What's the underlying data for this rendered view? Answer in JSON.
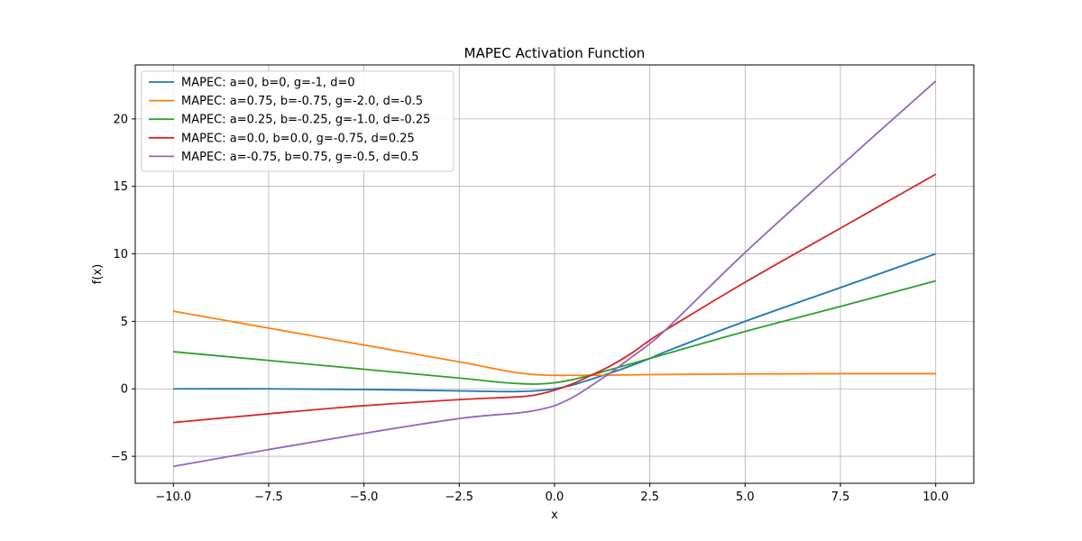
{
  "chart_data": {
    "type": "line",
    "title": "MAPEC Activation Function",
    "xlabel": "x",
    "ylabel": "f(x)",
    "xlim": [
      -11,
      11
    ],
    "ylim": [
      -7,
      24
    ],
    "grid": true,
    "legend_position": "top-left",
    "x_ticks": [
      -10,
      -7.5,
      -5,
      -2.5,
      0,
      2.5,
      5,
      7.5,
      10
    ],
    "x_tick_labels": [
      "−10.0",
      "−7.5",
      "−5.0",
      "−2.5",
      "0.0",
      "2.5",
      "5.0",
      "7.5",
      "10.0"
    ],
    "y_ticks": [
      -5,
      0,
      5,
      10,
      15,
      20
    ],
    "y_tick_labels": [
      "−5",
      "0",
      "5",
      "10",
      "15",
      "20"
    ],
    "series": [
      {
        "name": "MAPEC: a=0, b=0, g=-1, d=0",
        "color": "#1f77b4",
        "points": [
          [
            -10,
            0
          ],
          [
            -7.5,
            0
          ],
          [
            -5,
            -0.05
          ],
          [
            -2.5,
            -0.15
          ],
          [
            -1.5,
            -0.2
          ],
          [
            -1,
            -0.2
          ],
          [
            -0.5,
            -0.15
          ],
          [
            0,
            0
          ],
          [
            0.5,
            0.3
          ],
          [
            1,
            0.75
          ],
          [
            1.5,
            1.2
          ],
          [
            2,
            1.7
          ],
          [
            2.5,
            2.25
          ],
          [
            3,
            2.85
          ],
          [
            5,
            5
          ],
          [
            7.5,
            7.5
          ],
          [
            10,
            10
          ]
        ]
      },
      {
        "name": "MAPEC: a=0.75, b=-0.75, g=-2.0, d=-0.5",
        "color": "#ff7f0e",
        "points": [
          [
            -10,
            5.75
          ],
          [
            -7.5,
            4.5
          ],
          [
            -5,
            3.25
          ],
          [
            -2.5,
            2
          ],
          [
            -1.5,
            1.45
          ],
          [
            -1,
            1.2
          ],
          [
            -0.5,
            1.05
          ],
          [
            0,
            1
          ],
          [
            0.5,
            1
          ],
          [
            1,
            1
          ],
          [
            2.5,
            1.05
          ],
          [
            5,
            1.1
          ],
          [
            7.5,
            1.12
          ],
          [
            10,
            1.12
          ]
        ]
      },
      {
        "name": "MAPEC: a=0.25, b=-0.25, g=-1.0, d=-0.25",
        "color": "#2ca02c",
        "points": [
          [
            -10,
            2.75
          ],
          [
            -7.5,
            2.1
          ],
          [
            -5,
            1.45
          ],
          [
            -2.5,
            0.8
          ],
          [
            -1.5,
            0.5
          ],
          [
            -1,
            0.4
          ],
          [
            -0.5,
            0.35
          ],
          [
            0,
            0.45
          ],
          [
            0.5,
            0.7
          ],
          [
            1,
            1.05
          ],
          [
            1.5,
            1.45
          ],
          [
            2,
            1.85
          ],
          [
            2.5,
            2.25
          ],
          [
            5,
            4.25
          ],
          [
            7.5,
            6.1
          ],
          [
            10,
            8
          ]
        ]
      },
      {
        "name": "MAPEC: a=0.0, b=0.0, g=-0.75, d=0.25",
        "color": "#d62728",
        "points": [
          [
            -10,
            -2.5
          ],
          [
            -7.5,
            -1.85
          ],
          [
            -5,
            -1.25
          ],
          [
            -2.5,
            -0.8
          ],
          [
            -1,
            -0.6
          ],
          [
            -0.5,
            -0.45
          ],
          [
            0,
            -0.1
          ],
          [
            0.5,
            0.4
          ],
          [
            1,
            1.05
          ],
          [
            1.5,
            1.75
          ],
          [
            2,
            2.6
          ],
          [
            2.5,
            3.6
          ],
          [
            3,
            4.5
          ],
          [
            5,
            7.9
          ],
          [
            7.5,
            11.9
          ],
          [
            10,
            15.9
          ]
        ]
      },
      {
        "name": "MAPEC: a=-0.75, b=0.75, g=-0.5, d=0.5",
        "color": "#9467bd",
        "points": [
          [
            -10,
            -5.75
          ],
          [
            -7.5,
            -4.5
          ],
          [
            -5,
            -3.3
          ],
          [
            -2.5,
            -2.2
          ],
          [
            -1,
            -1.8
          ],
          [
            -0.5,
            -1.6
          ],
          [
            0,
            -1.25
          ],
          [
            0.5,
            -0.6
          ],
          [
            1,
            0.3
          ],
          [
            1.5,
            1.25
          ],
          [
            2,
            2.3
          ],
          [
            2.5,
            3.35
          ],
          [
            3,
            4.6
          ],
          [
            5,
            10.1
          ],
          [
            7.5,
            16.5
          ],
          [
            10,
            22.8
          ]
        ]
      }
    ]
  }
}
